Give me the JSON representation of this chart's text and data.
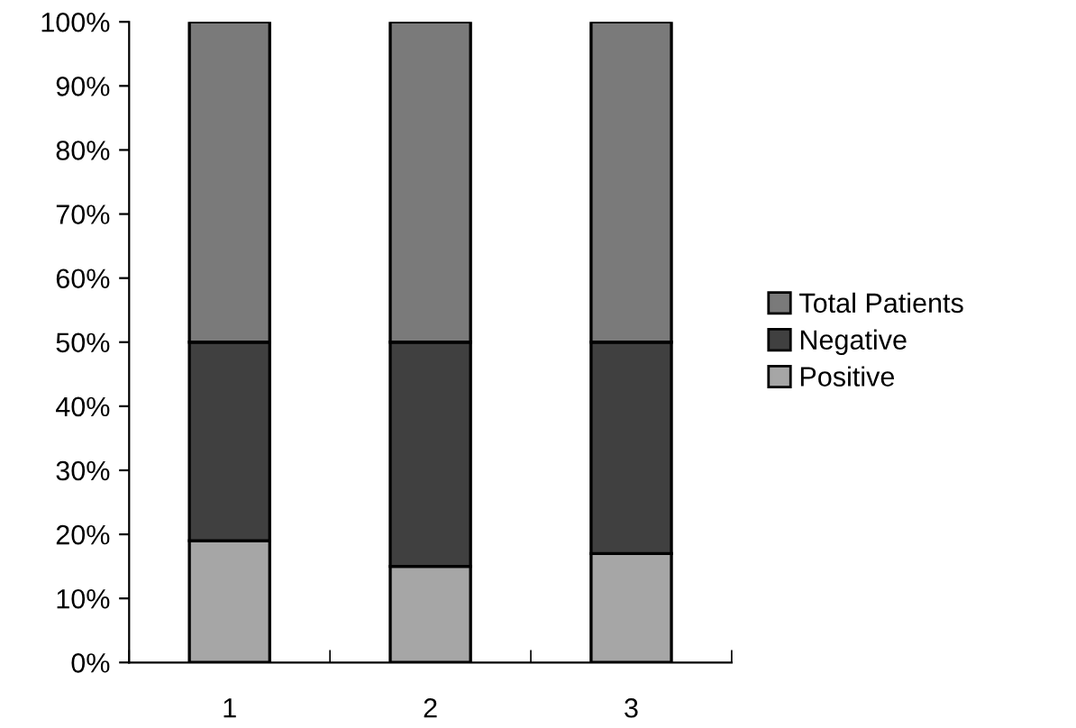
{
  "chart_data": {
    "type": "bar",
    "stacked": true,
    "categories": [
      "1",
      "2",
      "3"
    ],
    "series": [
      {
        "name": "Positive",
        "color": "#a6a6a6",
        "values": [
          19,
          15,
          17
        ]
      },
      {
        "name": "Negative",
        "color": "#404040",
        "values": [
          31,
          35,
          33
        ]
      },
      {
        "name": "Total Patients",
        "color": "#7a7a7a",
        "values": [
          50,
          50,
          50
        ]
      }
    ],
    "ylim": [
      0,
      100
    ],
    "yticks": [
      {
        "value": 0,
        "label": "0%"
      },
      {
        "value": 10,
        "label": "10%"
      },
      {
        "value": 20,
        "label": "20%"
      },
      {
        "value": 30,
        "label": "30%"
      },
      {
        "value": 40,
        "label": "40%"
      },
      {
        "value": 50,
        "label": "50%"
      },
      {
        "value": 60,
        "label": "60%"
      },
      {
        "value": 70,
        "label": "70%"
      },
      {
        "value": 80,
        "label": "80%"
      },
      {
        "value": 90,
        "label": "90%"
      },
      {
        "value": 100,
        "label": "100%"
      }
    ],
    "grid": false,
    "legend": "right"
  }
}
